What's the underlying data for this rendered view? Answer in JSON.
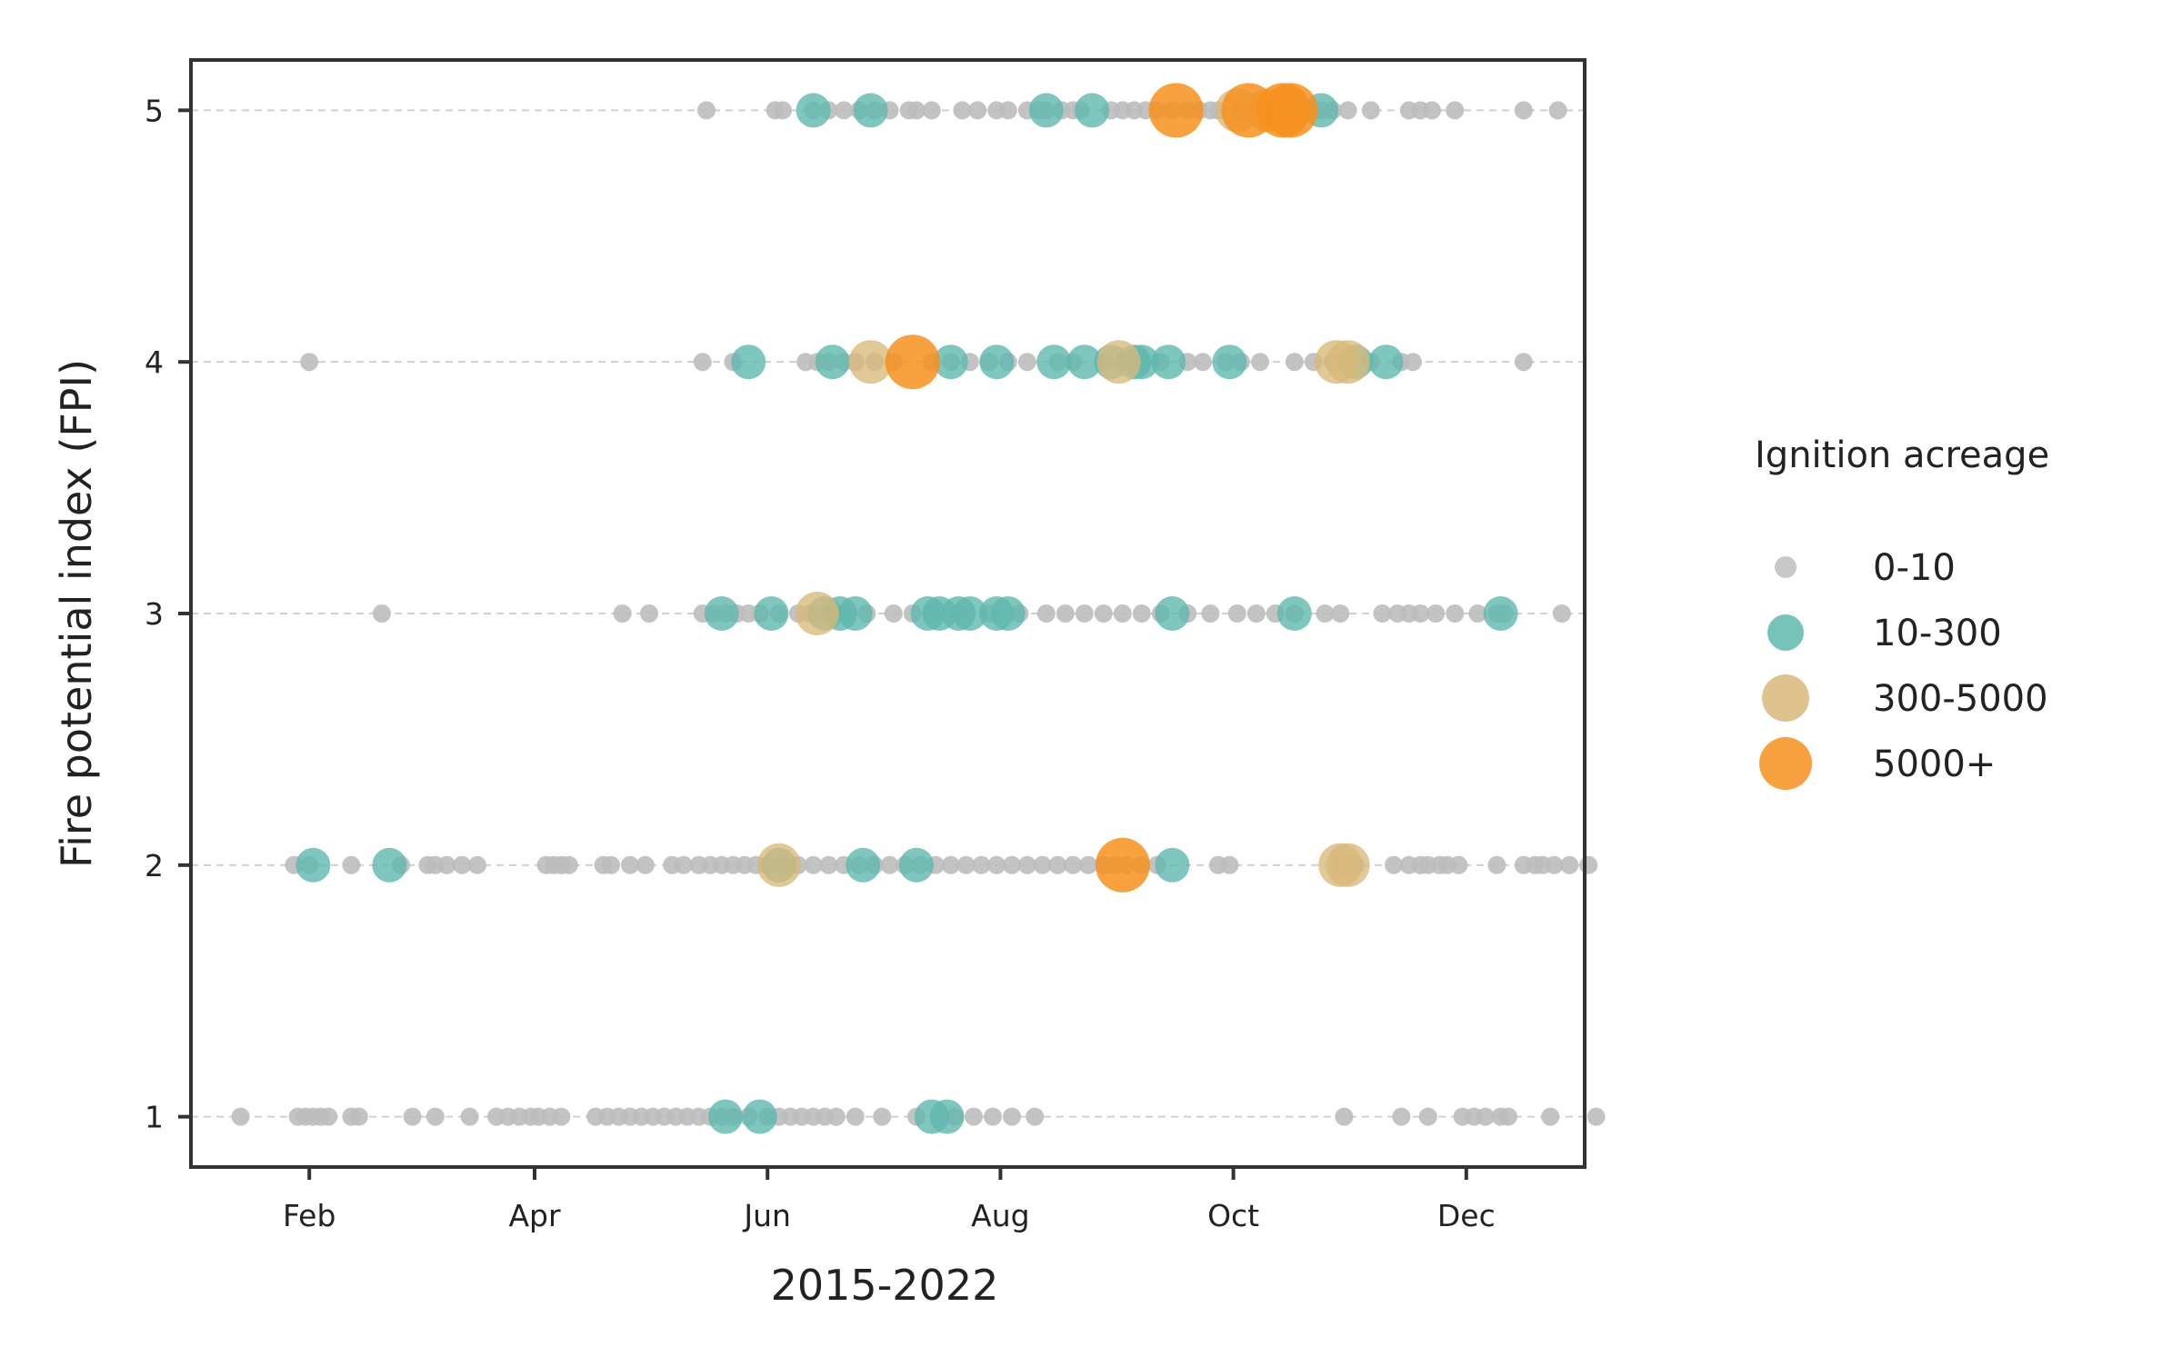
{
  "chart_data": {
    "type": "scatter",
    "title": "",
    "xlabel": "2015-2022",
    "ylabel": "Fire potential index (FPI)",
    "x_scale": "day of year",
    "xlim": [
      1,
      366
    ],
    "ylim": [
      0.8,
      5.2
    ],
    "x_ticks": [
      {
        "day": 32,
        "label": "Feb"
      },
      {
        "day": 91,
        "label": "Apr"
      },
      {
        "day": 152,
        "label": "Jun"
      },
      {
        "day": 213,
        "label": "Aug"
      },
      {
        "day": 274,
        "label": "Oct"
      },
      {
        "day": 335,
        "label": "Dec"
      }
    ],
    "y_ticks": [
      1,
      2,
      3,
      4,
      5
    ],
    "grid": "horizontal dashed lines at each FPI level",
    "legend": {
      "title": "Ignition acreage",
      "placement": "right",
      "entries": [
        {
          "label": "0-10",
          "color": "#bdbdbd"
        },
        {
          "label": "10-300",
          "color": "#5fb8ae"
        },
        {
          "label": "300-5000",
          "color": "#d9b87a"
        },
        {
          "label": "5000+",
          "color": "#f7901e"
        }
      ]
    },
    "colors": {
      "small": "#bdbdbd",
      "medium": "#5fb8ae",
      "large": "#d9b87a",
      "xlarge": "#f7901e"
    },
    "series": [
      {
        "name": "0-10",
        "points": [
          [
            136,
            5
          ],
          [
            154,
            5
          ],
          [
            156,
            5
          ],
          [
            164,
            5
          ],
          [
            168,
            5
          ],
          [
            172,
            5
          ],
          [
            176,
            5
          ],
          [
            180,
            5
          ],
          [
            184,
            5
          ],
          [
            189,
            5
          ],
          [
            191,
            5
          ],
          [
            195,
            5
          ],
          [
            203,
            5
          ],
          [
            207,
            5
          ],
          [
            212,
            5
          ],
          [
            215,
            5
          ],
          [
            220,
            5
          ],
          [
            223,
            5
          ],
          [
            225,
            5
          ],
          [
            229,
            5
          ],
          [
            232,
            5
          ],
          [
            234,
            5
          ],
          [
            242,
            5
          ],
          [
            245,
            5
          ],
          [
            248,
            5
          ],
          [
            251,
            5
          ],
          [
            254,
            5
          ],
          [
            258,
            5
          ],
          [
            262,
            5
          ],
          [
            265,
            5
          ],
          [
            268,
            5
          ],
          [
            270,
            5
          ],
          [
            276,
            5
          ],
          [
            282,
            5
          ],
          [
            286,
            5
          ],
          [
            291,
            5
          ],
          [
            297,
            5
          ],
          [
            300,
            5
          ],
          [
            304,
            5
          ],
          [
            310,
            5
          ],
          [
            320,
            5
          ],
          [
            323,
            5
          ],
          [
            326,
            5
          ],
          [
            332,
            5
          ],
          [
            350,
            5
          ],
          [
            359,
            5
          ],
          [
            32,
            4
          ],
          [
            135,
            4
          ],
          [
            143,
            4
          ],
          [
            162,
            4
          ],
          [
            165,
            4
          ],
          [
            168,
            4
          ],
          [
            172,
            4
          ],
          [
            175,
            4
          ],
          [
            180,
            4
          ],
          [
            185,
            4
          ],
          [
            195,
            4
          ],
          [
            200,
            4
          ],
          [
            205,
            4
          ],
          [
            210,
            4
          ],
          [
            215,
            4
          ],
          [
            220,
            4
          ],
          [
            228,
            4
          ],
          [
            232,
            4
          ],
          [
            240,
            4
          ],
          [
            245,
            4
          ],
          [
            250,
            4
          ],
          [
            255,
            4
          ],
          [
            262,
            4
          ],
          [
            266,
            4
          ],
          [
            272,
            4
          ],
          [
            276,
            4
          ],
          [
            281,
            4
          ],
          [
            290,
            4
          ],
          [
            295,
            4
          ],
          [
            300,
            4
          ],
          [
            310,
            4
          ],
          [
            318,
            4
          ],
          [
            321,
            4
          ],
          [
            350,
            4
          ],
          [
            51,
            3
          ],
          [
            114,
            3
          ],
          [
            121,
            3
          ],
          [
            135,
            3
          ],
          [
            138,
            3
          ],
          [
            141,
            3
          ],
          [
            144,
            3
          ],
          [
            147,
            3
          ],
          [
            150,
            3
          ],
          [
            155,
            3
          ],
          [
            160,
            3
          ],
          [
            163,
            3
          ],
          [
            168,
            3
          ],
          [
            172,
            3
          ],
          [
            178,
            3
          ],
          [
            185,
            3
          ],
          [
            190,
            3
          ],
          [
            195,
            3
          ],
          [
            202,
            3
          ],
          [
            210,
            3
          ],
          [
            218,
            3
          ],
          [
            225,
            3
          ],
          [
            230,
            3
          ],
          [
            235,
            3
          ],
          [
            240,
            3
          ],
          [
            245,
            3
          ],
          [
            250,
            3
          ],
          [
            255,
            3
          ],
          [
            262,
            3
          ],
          [
            268,
            3
          ],
          [
            275,
            3
          ],
          [
            280,
            3
          ],
          [
            285,
            3
          ],
          [
            290,
            3
          ],
          [
            298,
            3
          ],
          [
            302,
            3
          ],
          [
            313,
            3
          ],
          [
            317,
            3
          ],
          [
            320,
            3
          ],
          [
            323,
            3
          ],
          [
            327,
            3
          ],
          [
            332,
            3
          ],
          [
            338,
            3
          ],
          [
            343,
            3
          ],
          [
            345,
            3
          ],
          [
            360,
            3
          ],
          [
            28,
            2
          ],
          [
            32,
            2
          ],
          [
            43,
            2
          ],
          [
            56,
            2
          ],
          [
            63,
            2
          ],
          [
            65,
            2
          ],
          [
            68,
            2
          ],
          [
            72,
            2
          ],
          [
            76,
            2
          ],
          [
            94,
            2
          ],
          [
            96,
            2
          ],
          [
            98,
            2
          ],
          [
            100,
            2
          ],
          [
            109,
            2
          ],
          [
            111,
            2
          ],
          [
            116,
            2
          ],
          [
            120,
            2
          ],
          [
            127,
            2
          ],
          [
            130,
            2
          ],
          [
            134,
            2
          ],
          [
            137,
            2
          ],
          [
            140,
            2
          ],
          [
            143,
            2
          ],
          [
            146,
            2
          ],
          [
            149,
            2
          ],
          [
            152,
            2
          ],
          [
            156,
            2
          ],
          [
            160,
            2
          ],
          [
            164,
            2
          ],
          [
            168,
            2
          ],
          [
            172,
            2
          ],
          [
            176,
            2
          ],
          [
            180,
            2
          ],
          [
            184,
            2
          ],
          [
            188,
            2
          ],
          [
            192,
            2
          ],
          [
            196,
            2
          ],
          [
            200,
            2
          ],
          [
            204,
            2
          ],
          [
            208,
            2
          ],
          [
            212,
            2
          ],
          [
            216,
            2
          ],
          [
            220,
            2
          ],
          [
            224,
            2
          ],
          [
            228,
            2
          ],
          [
            232,
            2
          ],
          [
            236,
            2
          ],
          [
            240,
            2
          ],
          [
            243,
            2
          ],
          [
            246,
            2
          ],
          [
            250,
            2
          ],
          [
            254,
            2
          ],
          [
            270,
            2
          ],
          [
            273,
            2
          ],
          [
            302,
            2
          ],
          [
            304,
            2
          ],
          [
            306,
            2
          ],
          [
            316,
            2
          ],
          [
            320,
            2
          ],
          [
            323,
            2
          ],
          [
            325,
            2
          ],
          [
            328,
            2
          ],
          [
            330,
            2
          ],
          [
            333,
            2
          ],
          [
            343,
            2
          ],
          [
            350,
            2
          ],
          [
            353,
            2
          ],
          [
            355,
            2
          ],
          [
            358,
            2
          ],
          [
            362,
            2
          ],
          [
            367,
            2
          ],
          [
            14,
            1
          ],
          [
            29,
            1
          ],
          [
            31,
            1
          ],
          [
            33,
            1
          ],
          [
            35,
            1
          ],
          [
            37,
            1
          ],
          [
            43,
            1
          ],
          [
            45,
            1
          ],
          [
            59,
            1
          ],
          [
            65,
            1
          ],
          [
            74,
            1
          ],
          [
            81,
            1
          ],
          [
            84,
            1
          ],
          [
            87,
            1
          ],
          [
            90,
            1
          ],
          [
            92,
            1
          ],
          [
            95,
            1
          ],
          [
            98,
            1
          ],
          [
            107,
            1
          ],
          [
            110,
            1
          ],
          [
            113,
            1
          ],
          [
            116,
            1
          ],
          [
            119,
            1
          ],
          [
            122,
            1
          ],
          [
            125,
            1
          ],
          [
            128,
            1
          ],
          [
            131,
            1
          ],
          [
            134,
            1
          ],
          [
            137,
            1
          ],
          [
            140,
            1
          ],
          [
            143,
            1
          ],
          [
            147,
            1
          ],
          [
            152,
            1
          ],
          [
            155,
            1
          ],
          [
            158,
            1
          ],
          [
            161,
            1
          ],
          [
            164,
            1
          ],
          [
            167,
            1
          ],
          [
            170,
            1
          ],
          [
            175,
            1
          ],
          [
            182,
            1
          ],
          [
            191,
            1
          ],
          [
            201,
            1
          ],
          [
            206,
            1
          ],
          [
            211,
            1
          ],
          [
            216,
            1
          ],
          [
            222,
            1
          ],
          [
            303,
            1
          ],
          [
            318,
            1
          ],
          [
            325,
            1
          ],
          [
            334,
            1
          ],
          [
            337,
            1
          ],
          [
            340,
            1
          ],
          [
            344,
            1
          ],
          [
            346,
            1
          ],
          [
            357,
            1
          ],
          [
            369,
            1
          ]
        ]
      },
      {
        "name": "10-300",
        "points": [
          [
            164,
            5
          ],
          [
            179,
            5
          ],
          [
            225,
            5
          ],
          [
            237,
            5
          ],
          [
            282,
            5
          ],
          [
            290,
            5
          ],
          [
            297,
            5
          ],
          [
            147,
            4
          ],
          [
            169,
            4
          ],
          [
            200,
            4
          ],
          [
            212,
            4
          ],
          [
            227,
            4
          ],
          [
            235,
            4
          ],
          [
            242,
            4
          ],
          [
            248,
            4
          ],
          [
            250,
            4
          ],
          [
            257,
            4
          ],
          [
            273,
            4
          ],
          [
            306,
            4
          ],
          [
            314,
            4
          ],
          [
            140,
            3
          ],
          [
            153,
            3
          ],
          [
            167,
            3
          ],
          [
            171,
            3
          ],
          [
            175,
            3
          ],
          [
            194,
            3
          ],
          [
            197,
            3
          ],
          [
            202,
            3
          ],
          [
            205,
            3
          ],
          [
            212,
            3
          ],
          [
            215,
            3
          ],
          [
            258,
            3
          ],
          [
            290,
            3
          ],
          [
            344,
            3
          ],
          [
            33,
            2
          ],
          [
            53,
            2
          ],
          [
            155,
            2
          ],
          [
            177,
            2
          ],
          [
            191,
            2
          ],
          [
            258,
            2
          ],
          [
            141,
            1
          ],
          [
            150,
            1
          ],
          [
            195,
            1
          ],
          [
            199,
            1
          ]
        ]
      },
      {
        "name": "300-5000",
        "points": [
          [
            275,
            5
          ],
          [
            283,
            5
          ],
          [
            286,
            5
          ],
          [
            179,
            4
          ],
          [
            244,
            4
          ],
          [
            301,
            4
          ],
          [
            304,
            4
          ],
          [
            165,
            3
          ],
          [
            155,
            2
          ],
          [
            302,
            2
          ],
          [
            304,
            2
          ]
        ]
      },
      {
        "name": "5000+",
        "points": [
          [
            259,
            5
          ],
          [
            278,
            5
          ],
          [
            287,
            5
          ],
          [
            289,
            5
          ],
          [
            190,
            4
          ],
          [
            245,
            2
          ]
        ]
      }
    ]
  }
}
